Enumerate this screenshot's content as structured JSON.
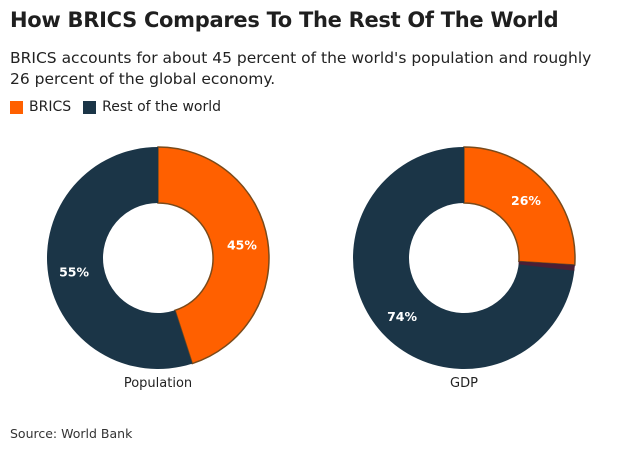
{
  "chart_data": {
    "type": "pie",
    "title": "How BRICS Compares To The Rest Of The World",
    "subtitle": "BRICS accounts for about 45 percent of the world's population and roughly 26 percent of the global economy.",
    "series_names": [
      "BRICS",
      "Rest of the world"
    ],
    "colors": {
      "BRICS": "#ff6000",
      "Rest of the world": "#1b3547",
      "stroke": "#7a4a1a",
      "gdp_sliver": "#4a1f35"
    },
    "charts": [
      {
        "label": "Population",
        "values": [
          45,
          55
        ],
        "value_labels": [
          "45%",
          "55%"
        ]
      },
      {
        "label": "GDP",
        "values": [
          26,
          74
        ],
        "value_labels": [
          "26%",
          "74%"
        ]
      }
    ],
    "source": "Source: World Bank"
  }
}
